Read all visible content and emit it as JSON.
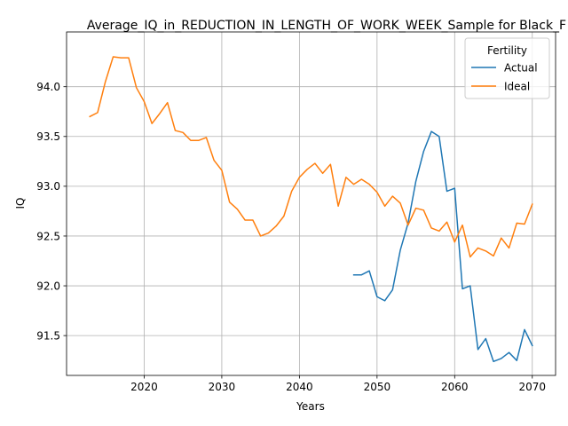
{
  "chart_data": {
    "type": "line",
    "title": "Average_IQ_in_REDUCTION_IN_LENGTH_OF_WORK_WEEK_Sample for Black_F",
    "xlabel": "Years",
    "ylabel": "IQ",
    "xlim": [
      2010,
      2073
    ],
    "ylim": [
      91.1,
      94.55
    ],
    "xticks": [
      2020,
      2030,
      2040,
      2050,
      2060,
      2070
    ],
    "yticks": [
      91.5,
      92.0,
      92.5,
      93.0,
      93.5,
      94.0
    ],
    "xtick_labels": [
      "2020",
      "2030",
      "2040",
      "2050",
      "2060",
      "2070"
    ],
    "ytick_labels": [
      "91.5",
      "92.0",
      "92.5",
      "93.0",
      "93.5",
      "94.0"
    ],
    "grid": true,
    "legend": {
      "title": "Fertility",
      "position": "top-right"
    },
    "series": [
      {
        "name": "Actual",
        "color": "#1f77b4",
        "x": [
          2047,
          2048,
          2049,
          2050,
          2051,
          2052,
          2053,
          2054,
          2055,
          2056,
          2057,
          2058,
          2059,
          2060,
          2061,
          2062,
          2063,
          2064,
          2065,
          2066,
          2067,
          2068,
          2069,
          2070
        ],
        "y": [
          92.11,
          92.11,
          92.15,
          91.89,
          91.85,
          91.96,
          92.36,
          92.63,
          93.05,
          93.35,
          93.55,
          93.5,
          92.95,
          92.98,
          91.97,
          92.0,
          91.36,
          91.47,
          91.24,
          91.27,
          91.33,
          91.25,
          91.56,
          91.4
        ]
      },
      {
        "name": "Ideal",
        "color": "#ff7f0e",
        "x": [
          2013,
          2014,
          2015,
          2016,
          2017,
          2018,
          2019,
          2020,
          2021,
          2022,
          2023,
          2024,
          2025,
          2026,
          2027,
          2028,
          2029,
          2030,
          2031,
          2032,
          2033,
          2034,
          2035,
          2036,
          2037,
          2038,
          2039,
          2040,
          2041,
          2042,
          2043,
          2044,
          2045,
          2046,
          2047,
          2048,
          2049,
          2050,
          2051,
          2052,
          2053,
          2054,
          2055,
          2056,
          2057,
          2058,
          2059,
          2060,
          2061,
          2062,
          2063,
          2064,
          2065,
          2066,
          2067,
          2068,
          2069,
          2070
        ],
        "y": [
          93.7,
          93.74,
          94.05,
          94.3,
          94.29,
          94.29,
          93.99,
          93.85,
          93.63,
          93.73,
          93.84,
          93.56,
          93.54,
          93.46,
          93.46,
          93.49,
          93.26,
          93.16,
          92.84,
          92.77,
          92.66,
          92.66,
          92.5,
          92.53,
          92.6,
          92.7,
          92.95,
          93.09,
          93.17,
          93.23,
          93.13,
          93.22,
          92.8,
          93.09,
          93.02,
          93.07,
          93.02,
          92.94,
          92.8,
          92.9,
          92.83,
          92.61,
          92.78,
          92.76,
          92.58,
          92.55,
          92.64,
          92.44,
          92.61,
          92.29,
          92.38,
          92.35,
          92.3,
          92.48,
          92.38,
          92.63,
          92.62,
          92.82
        ]
      }
    ]
  }
}
